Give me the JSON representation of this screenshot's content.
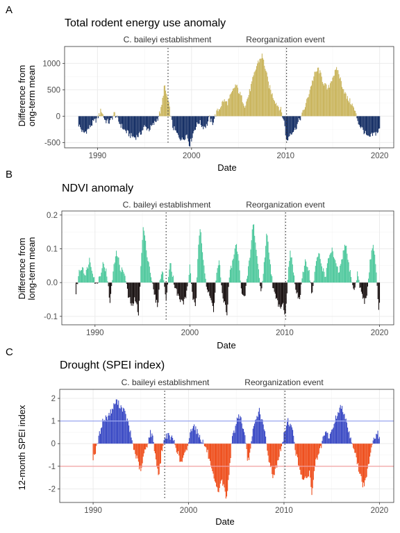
{
  "chart_data": [
    {
      "type": "bar",
      "letter": "A",
      "title": "Total rodent energy use anomaly",
      "xlabel": "Date",
      "ylabel_lines": [
        "Difference from",
        "ong-term mean"
      ],
      "xlim": [
        1986.5,
        2021.5
      ],
      "ylim": [
        -600,
        1320
      ],
      "xticks": [
        1990,
        2000,
        2010,
        2020
      ],
      "yticks": [
        -500,
        0,
        500,
        1000
      ],
      "ytick_labels": [
        "-500",
        "0",
        "500",
        "1000"
      ],
      "colors": {
        "positive": "#C9B45B",
        "negative": "#122C63"
      },
      "annotations": [
        {
          "x": 1997.5,
          "label": "C. baileyi establishment"
        },
        {
          "x": 2010.1,
          "label": "Reorganization event"
        }
      ],
      "series_anchors": [
        [
          1988.0,
          -160
        ],
        [
          1988.5,
          -330
        ],
        [
          1989.0,
          -250
        ],
        [
          1989.5,
          -130
        ],
        [
          1990.0,
          -40
        ],
        [
          1990.4,
          120
        ],
        [
          1990.8,
          -80
        ],
        [
          1991.3,
          -120
        ],
        [
          1991.8,
          60
        ],
        [
          1992.3,
          -120
        ],
        [
          1992.8,
          -250
        ],
        [
          1993.2,
          -320
        ],
        [
          1993.6,
          -380
        ],
        [
          1994.0,
          -400
        ],
        [
          1994.5,
          -350
        ],
        [
          1995.0,
          -200
        ],
        [
          1995.5,
          -250
        ],
        [
          1996.0,
          -150
        ],
        [
          1996.4,
          -40
        ],
        [
          1996.8,
          150
        ],
        [
          1997.1,
          580
        ],
        [
          1997.5,
          300
        ],
        [
          1998.0,
          -200
        ],
        [
          1998.5,
          -350
        ],
        [
          1999.0,
          -450
        ],
        [
          1999.5,
          -350
        ],
        [
          1999.8,
          -550
        ],
        [
          2000.3,
          -250
        ],
        [
          2000.8,
          -100
        ],
        [
          2001.2,
          -200
        ],
        [
          2001.6,
          -180
        ],
        [
          2001.9,
          -30
        ],
        [
          2002.2,
          -150
        ],
        [
          2002.6,
          50
        ],
        [
          2003.0,
          160
        ],
        [
          2003.4,
          300
        ],
        [
          2003.8,
          250
        ],
        [
          2004.2,
          400
        ],
        [
          2004.7,
          600
        ],
        [
          2005.2,
          400
        ],
        [
          2005.7,
          200
        ],
        [
          2006.1,
          420
        ],
        [
          2006.6,
          750
        ],
        [
          2007.0,
          1000
        ],
        [
          2007.5,
          1150
        ],
        [
          2007.8,
          950
        ],
        [
          2008.2,
          600
        ],
        [
          2008.6,
          400
        ],
        [
          2009.0,
          250
        ],
        [
          2009.5,
          120
        ],
        [
          2009.9,
          -150
        ],
        [
          2010.1,
          -500
        ],
        [
          2010.5,
          -320
        ],
        [
          2011.0,
          -250
        ],
        [
          2011.4,
          -100
        ],
        [
          2011.8,
          50
        ],
        [
          2012.2,
          250
        ],
        [
          2012.7,
          580
        ],
        [
          2013.1,
          800
        ],
        [
          2013.5,
          900
        ],
        [
          2014.0,
          650
        ],
        [
          2014.5,
          500
        ],
        [
          2015.0,
          750
        ],
        [
          2015.5,
          900
        ],
        [
          2016.0,
          600
        ],
        [
          2016.5,
          350
        ],
        [
          2017.0,
          250
        ],
        [
          2017.4,
          80
        ],
        [
          2017.8,
          -150
        ],
        [
          2018.3,
          -280
        ],
        [
          2018.8,
          -420
        ],
        [
          2019.3,
          -350
        ],
        [
          2019.8,
          -300
        ],
        [
          2020.0,
          -250
        ]
      ]
    },
    {
      "type": "bar",
      "letter": "B",
      "title": "NDVI anomaly",
      "xlabel": "Date",
      "ylabel_lines": [
        "Difference from",
        "long-term mean"
      ],
      "xlim": [
        1986.5,
        2021.5
      ],
      "ylim": [
        -0.125,
        0.212
      ],
      "xticks": [
        1990,
        2000,
        2010,
        2020
      ],
      "yticks": [
        -0.1,
        0.0,
        0.1,
        0.2
      ],
      "ytick_labels": [
        "-0.1",
        "0.0",
        "0.1",
        "0.2"
      ],
      "colors": {
        "positive": "#4DC89C",
        "negative": "#140C0C"
      },
      "annotations": [
        {
          "x": 1997.5,
          "label": "C. baileyi establishment"
        },
        {
          "x": 2010.1,
          "label": "Reorganization event"
        }
      ],
      "series_anchors": [
        [
          1988.0,
          -0.03
        ],
        [
          1988.3,
          0.03
        ],
        [
          1988.7,
          0.05
        ],
        [
          1989.0,
          0.02
        ],
        [
          1989.4,
          0.07
        ],
        [
          1989.8,
          0.03
        ],
        [
          1990.1,
          -0.01
        ],
        [
          1990.5,
          0.02
        ],
        [
          1990.9,
          0.06
        ],
        [
          1991.2,
          0.03
        ],
        [
          1991.6,
          -0.06
        ],
        [
          1992.0,
          0.06
        ],
        [
          1992.3,
          0.09
        ],
        [
          1992.7,
          0.04
        ],
        [
          1993.1,
          0.03
        ],
        [
          1993.5,
          -0.04
        ],
        [
          1993.9,
          -0.07
        ],
        [
          1994.2,
          -0.05
        ],
        [
          1994.6,
          -0.09
        ],
        [
          1994.9,
          0.08
        ],
        [
          1995.1,
          0.17
        ],
        [
          1995.4,
          0.1
        ],
        [
          1995.8,
          0.04
        ],
        [
          1996.2,
          -0.03
        ],
        [
          1996.6,
          -0.07
        ],
        [
          1996.9,
          0.02
        ],
        [
          1997.2,
          0.03
        ],
        [
          1997.5,
          -0.06
        ],
        [
          1997.9,
          0.07
        ],
        [
          1998.2,
          0.02
        ],
        [
          1998.5,
          -0.02
        ],
        [
          1998.9,
          -0.05
        ],
        [
          1999.3,
          -0.06
        ],
        [
          1999.7,
          -0.03
        ],
        [
          2000.0,
          0.05
        ],
        [
          2000.3,
          -0.04
        ],
        [
          2000.6,
          -0.08
        ],
        [
          2000.9,
          0.1
        ],
        [
          2001.1,
          0.17
        ],
        [
          2001.4,
          0.08
        ],
        [
          2001.8,
          -0.02
        ],
        [
          2002.2,
          -0.05
        ],
        [
          2002.5,
          -0.08
        ],
        [
          2002.8,
          0.02
        ],
        [
          2003.1,
          0.07
        ],
        [
          2003.4,
          -0.04
        ],
        [
          2003.7,
          -0.06
        ],
        [
          2003.9,
          -0.1
        ],
        [
          2004.2,
          0.03
        ],
        [
          2004.6,
          0.07
        ],
        [
          2004.9,
          0.12
        ],
        [
          2005.2,
          0.05
        ],
        [
          2005.5,
          -0.03
        ],
        [
          2005.8,
          -0.05
        ],
        [
          2006.1,
          0.03
        ],
        [
          2006.4,
          0.09
        ],
        [
          2006.7,
          0.19
        ],
        [
          2006.9,
          0.12
        ],
        [
          2007.2,
          0.05
        ],
        [
          2007.5,
          -0.03
        ],
        [
          2007.8,
          0.04
        ],
        [
          2008.1,
          0.15
        ],
        [
          2008.4,
          0.08
        ],
        [
          2008.8,
          -0.02
        ],
        [
          2009.1,
          -0.05
        ],
        [
          2009.5,
          -0.07
        ],
        [
          2009.8,
          -0.06
        ],
        [
          2010.1,
          -0.1
        ],
        [
          2010.4,
          0.05
        ],
        [
          2010.6,
          0.09
        ],
        [
          2010.9,
          0.04
        ],
        [
          2011.2,
          -0.03
        ],
        [
          2011.6,
          -0.05
        ],
        [
          2011.9,
          0.02
        ],
        [
          2012.2,
          0.07
        ],
        [
          2012.6,
          0.03
        ],
        [
          2012.9,
          -0.04
        ],
        [
          2013.2,
          0.04
        ],
        [
          2013.6,
          0.09
        ],
        [
          2013.9,
          0.05
        ],
        [
          2014.3,
          0.02
        ],
        [
          2014.7,
          0.08
        ],
        [
          2015.0,
          0.1
        ],
        [
          2015.3,
          0.06
        ],
        [
          2015.7,
          0.03
        ],
        [
          2016.0,
          0.06
        ],
        [
          2016.4,
          0.12
        ],
        [
          2016.7,
          0.06
        ],
        [
          2017.0,
          0.02
        ],
        [
          2017.3,
          -0.03
        ],
        [
          2017.7,
          0.03
        ],
        [
          2018.0,
          -0.02
        ],
        [
          2018.4,
          -0.06
        ],
        [
          2018.7,
          -0.03
        ],
        [
          2019.0,
          0.06
        ],
        [
          2019.3,
          0.12
        ],
        [
          2019.6,
          0.06
        ],
        [
          2019.9,
          -0.09
        ],
        [
          2020.0,
          -0.05
        ]
      ]
    },
    {
      "type": "bar",
      "letter": "C",
      "title": "Drought (SPEI index)",
      "xlabel": "Date",
      "ylabel_lines": [
        "12-month SPEI index"
      ],
      "xlim": [
        1986.5,
        2021.5
      ],
      "ylim": [
        -2.6,
        2.4
      ],
      "xticks": [
        1990,
        2000,
        2010,
        2020
      ],
      "yticks": [
        -2,
        -1,
        0,
        1,
        2
      ],
      "ytick_labels": [
        "-2",
        "-1",
        "0",
        "1",
        "2"
      ],
      "colors": {
        "positive": "#3848C4",
        "negative": "#EE4B18"
      },
      "hlines": [
        {
          "y": 1,
          "color": "#9AA6F0"
        },
        {
          "y": -1,
          "color": "#F1A0A0"
        }
      ],
      "annotations": [
        {
          "x": 1997.5,
          "label": "C. baileyi establishment"
        },
        {
          "x": 2010.1,
          "label": "Reorganization event"
        }
      ],
      "series_anchors": [
        [
          1990.0,
          -0.6
        ],
        [
          1990.3,
          -0.3
        ],
        [
          1990.6,
          0.3
        ],
        [
          1991.0,
          1.0
        ],
        [
          1991.5,
          1.2
        ],
        [
          1992.0,
          1.5
        ],
        [
          1992.4,
          1.9
        ],
        [
          1992.8,
          1.7
        ],
        [
          1993.2,
          1.5
        ],
        [
          1993.6,
          1.0
        ],
        [
          1994.0,
          0.3
        ],
        [
          1994.3,
          -0.3
        ],
        [
          1994.7,
          -0.8
        ],
        [
          1995.0,
          -1.3
        ],
        [
          1995.3,
          -0.5
        ],
        [
          1995.7,
          0.0
        ],
        [
          1996.0,
          0.5
        ],
        [
          1996.3,
          0.2
        ],
        [
          1996.6,
          -0.8
        ],
        [
          1996.9,
          -1.4
        ],
        [
          1997.2,
          -0.3
        ],
        [
          1997.6,
          0.4
        ],
        [
          1998.0,
          0.3
        ],
        [
          1998.4,
          0.2
        ],
        [
          1998.8,
          -0.3
        ],
        [
          1999.2,
          -0.9
        ],
        [
          1999.5,
          -0.6
        ],
        [
          1999.8,
          -0.3
        ],
        [
          2000.2,
          0.5
        ],
        [
          2000.5,
          0.9
        ],
        [
          2000.8,
          0.6
        ],
        [
          2001.2,
          0.3
        ],
        [
          2001.6,
          0.0
        ],
        [
          2002.0,
          -0.4
        ],
        [
          2002.4,
          -1.2
        ],
        [
          2002.8,
          -1.8
        ],
        [
          2003.1,
          -2.2
        ],
        [
          2003.4,
          -1.6
        ],
        [
          2003.7,
          -1.9
        ],
        [
          2004.0,
          -2.45
        ],
        [
          2004.3,
          -1.0
        ],
        [
          2004.6,
          0.3
        ],
        [
          2004.9,
          0.7
        ],
        [
          2005.2,
          1.3
        ],
        [
          2005.5,
          1.1
        ],
        [
          2005.9,
          0.3
        ],
        [
          2006.2,
          -0.8
        ],
        [
          2006.5,
          -0.3
        ],
        [
          2006.8,
          0.7
        ],
        [
          2007.1,
          1.1
        ],
        [
          2007.4,
          1.5
        ],
        [
          2007.7,
          1.0
        ],
        [
          2008.0,
          0.5
        ],
        [
          2008.3,
          -0.5
        ],
        [
          2008.6,
          -1.0
        ],
        [
          2008.9,
          -1.5
        ],
        [
          2009.2,
          -1.0
        ],
        [
          2009.5,
          -0.5
        ],
        [
          2009.8,
          -0.1
        ],
        [
          2010.1,
          0.6
        ],
        [
          2010.4,
          1.05
        ],
        [
          2010.7,
          0.8
        ],
        [
          2011.0,
          0.4
        ],
        [
          2011.2,
          -0.3
        ],
        [
          2011.5,
          -0.9
        ],
        [
          2011.8,
          -1.3
        ],
        [
          2012.1,
          -1.7
        ],
        [
          2012.4,
          -1.5
        ],
        [
          2012.7,
          -1.2
        ],
        [
          2012.9,
          -2.4
        ],
        [
          2013.2,
          -1.0
        ],
        [
          2013.5,
          -0.6
        ],
        [
          2013.8,
          -0.3
        ],
        [
          2014.1,
          0.2
        ],
        [
          2014.4,
          0.5
        ],
        [
          2014.7,
          0.3
        ],
        [
          2015.0,
          0.5
        ],
        [
          2015.3,
          1.0
        ],
        [
          2015.6,
          1.3
        ],
        [
          2015.9,
          1.6
        ],
        [
          2016.2,
          1.5
        ],
        [
          2016.5,
          1.1
        ],
        [
          2016.8,
          0.5
        ],
        [
          2017.1,
          0.1
        ],
        [
          2017.4,
          -0.3
        ],
        [
          2017.7,
          -0.9
        ],
        [
          2018.0,
          -1.4
        ],
        [
          2018.3,
          -1.9
        ],
        [
          2018.6,
          -1.6
        ],
        [
          2018.9,
          -0.8
        ],
        [
          2019.2,
          0.0
        ],
        [
          2019.5,
          0.3
        ],
        [
          2019.8,
          0.5
        ],
        [
          2020.0,
          0.2
        ]
      ]
    }
  ]
}
